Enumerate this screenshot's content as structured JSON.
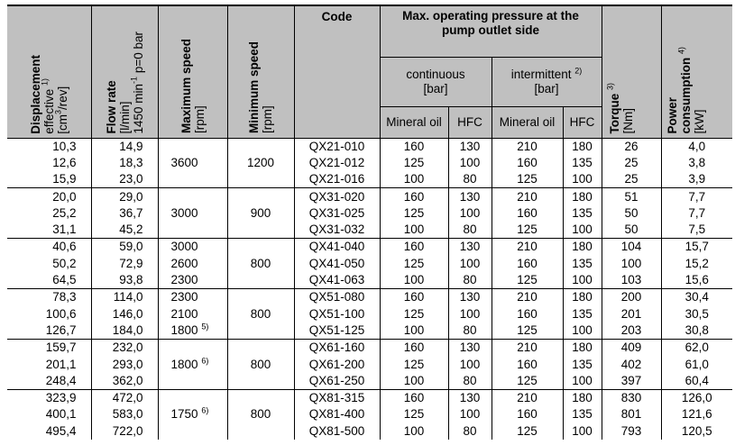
{
  "header": {
    "displacement": {
      "title": "Displacement",
      "line2": "effective",
      "note": "1)",
      "unit_pre": "[cm",
      "unit_sup": "3",
      "unit_post": "/rev]"
    },
    "flow_rate": {
      "title": "Flow rate",
      "unit": "[l/min]",
      "cond_pre": "1450 min",
      "cond_sup": "-1",
      "cond_post": " p=0 bar"
    },
    "max_speed": {
      "title": "Maximum speed",
      "unit": "[rpm]"
    },
    "min_speed": {
      "title": "Minimum speed",
      "unit": "[rpm]"
    },
    "code": "Code",
    "pressure_group": "Max. operating pressure at the pump outlet side",
    "continuous": "continuous",
    "continuous_unit": "[bar]",
    "intermittent": "intermittent",
    "intermittent_note": "2)",
    "intermittent_unit": "[bar]",
    "mineral_oil": "Mineral oil",
    "hfc": "HFC",
    "torque": {
      "title": "Torque",
      "note": "3)",
      "unit": "[Nm]"
    },
    "power": {
      "title": "Power",
      "line2": "consumption",
      "note": "4)",
      "unit": "[kW]"
    }
  },
  "groups": [
    {
      "max_speed": [
        "",
        "3600",
        ""
      ],
      "max_notes": [
        "",
        "",
        ""
      ],
      "min_speed": "1200",
      "rows": [
        [
          "10,3",
          "14,9",
          "QX21-010",
          "160",
          "130",
          "210",
          "180",
          "26",
          "4,0"
        ],
        [
          "12,6",
          "18,3",
          "QX21-012",
          "125",
          "100",
          "160",
          "135",
          "25",
          "3,8"
        ],
        [
          "15,9",
          "23,0",
          "QX21-016",
          "100",
          "80",
          "125",
          "100",
          "25",
          "3,9"
        ]
      ]
    },
    {
      "max_speed": [
        "",
        "3000",
        ""
      ],
      "max_notes": [
        "",
        "",
        ""
      ],
      "min_speed": "900",
      "rows": [
        [
          "20,0",
          "29,0",
          "QX31-020",
          "160",
          "130",
          "210",
          "180",
          "51",
          "7,7"
        ],
        [
          "25,2",
          "36,7",
          "QX31-025",
          "125",
          "100",
          "160",
          "135",
          "50",
          "7,7"
        ],
        [
          "31,1",
          "45,2",
          "QX31-032",
          "100",
          "80",
          "125",
          "100",
          "50",
          "7,5"
        ]
      ]
    },
    {
      "max_speed": [
        "3000",
        "2600",
        "2300"
      ],
      "max_notes": [
        "",
        "",
        ""
      ],
      "min_speed": "800",
      "rows": [
        [
          "40,6",
          "59,0",
          "QX41-040",
          "160",
          "130",
          "210",
          "180",
          "104",
          "15,7"
        ],
        [
          "50,2",
          "72,9",
          "QX41-050",
          "125",
          "100",
          "160",
          "135",
          "100",
          "15,2"
        ],
        [
          "64,5",
          "93,8",
          "QX41-063",
          "100",
          "80",
          "125",
          "100",
          "103",
          "15,6"
        ]
      ]
    },
    {
      "max_speed": [
        "2300",
        "2100",
        "1800"
      ],
      "max_notes": [
        "",
        "",
        "5)"
      ],
      "min_speed": "800",
      "rows": [
        [
          "78,3",
          "114,0",
          "QX51-080",
          "160",
          "130",
          "210",
          "180",
          "200",
          "30,4"
        ],
        [
          "100,6",
          "146,0",
          "QX51-100",
          "125",
          "100",
          "160",
          "135",
          "201",
          "30,5"
        ],
        [
          "126,7",
          "184,0",
          "QX51-125",
          "100",
          "80",
          "125",
          "100",
          "203",
          "30,8"
        ]
      ]
    },
    {
      "max_speed": [
        "",
        "1800",
        ""
      ],
      "max_notes": [
        "",
        "6)",
        ""
      ],
      "min_speed": "800",
      "rows": [
        [
          "159,7",
          "232,0",
          "QX61-160",
          "160",
          "130",
          "210",
          "180",
          "409",
          "62,0"
        ],
        [
          "201,1",
          "293,0",
          "QX61-200",
          "125",
          "100",
          "160",
          "135",
          "402",
          "61,0"
        ],
        [
          "248,4",
          "362,0",
          "QX61-250",
          "100",
          "80",
          "125",
          "100",
          "397",
          "60,4"
        ]
      ]
    },
    {
      "max_speed": [
        "",
        "1750",
        ""
      ],
      "max_notes": [
        "",
        "6)",
        ""
      ],
      "min_speed": "800",
      "rows": [
        [
          "323,9",
          "472,0",
          "QX81-315",
          "160",
          "130",
          "210",
          "180",
          "830",
          "126,0"
        ],
        [
          "400,1",
          "583,0",
          "QX81-400",
          "125",
          "100",
          "160",
          "135",
          "801",
          "121,6"
        ],
        [
          "495,4",
          "722,0",
          "QX81-500",
          "100",
          "80",
          "125",
          "100",
          "793",
          "120,5"
        ]
      ]
    }
  ]
}
